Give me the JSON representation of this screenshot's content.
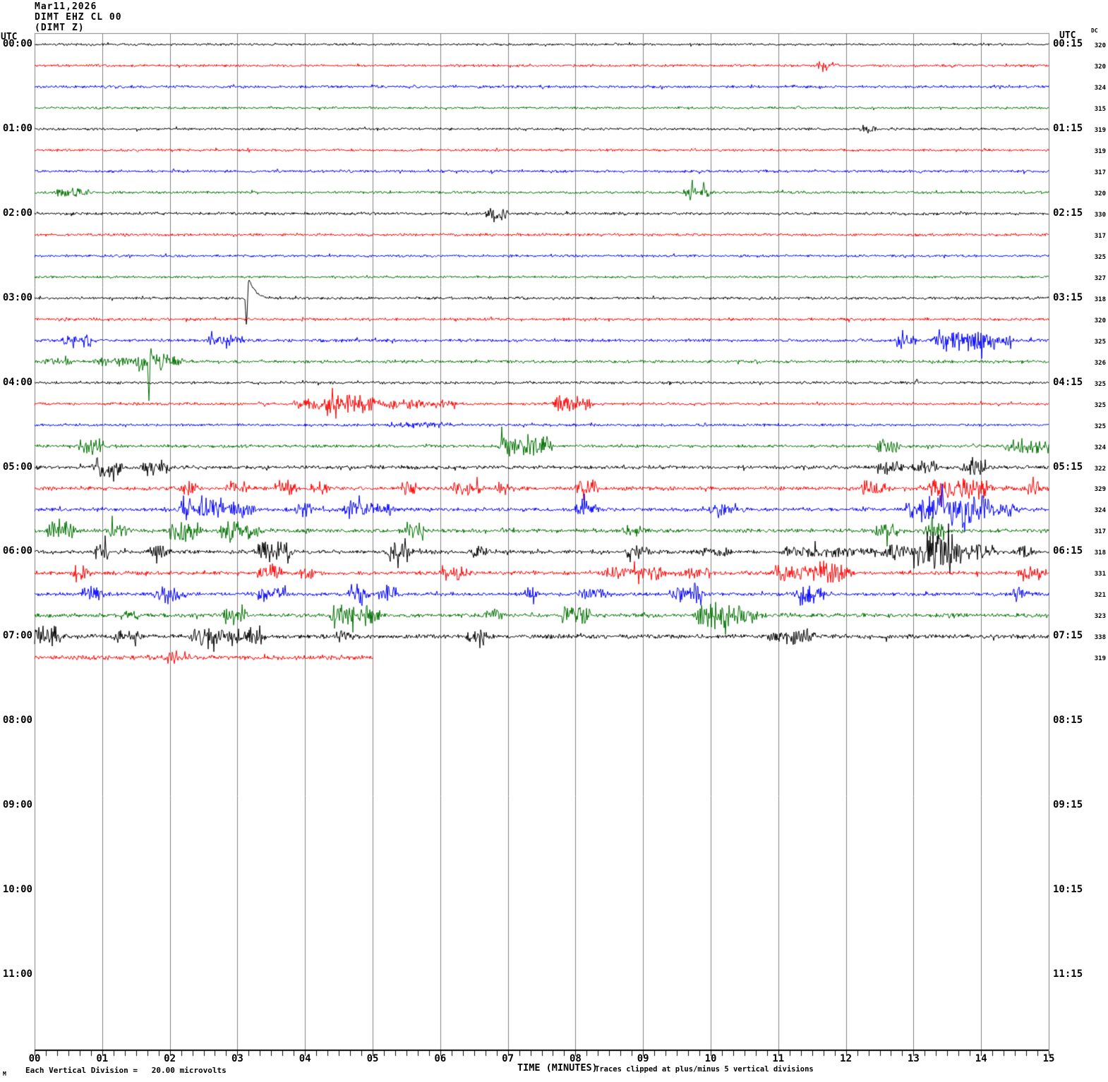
{
  "title": {
    "date": "Mar11,2026",
    "station": "DIMT EHZ CL 00",
    "component": "(DIMT Z)"
  },
  "header": {
    "utc_left": "UTC",
    "utc_right": "UTC",
    "dc_label": "DC"
  },
  "footer": {
    "scale_note": "Each Vertical Division =   20.00 microvolts",
    "xlabel": "TIME (MINUTES)",
    "clip_note": "Traces clipped at plus/minus 5 vertical divisions",
    "watermark": "M"
  },
  "chart_data": {
    "type": "line",
    "kind": "helicorder-seismogram",
    "x_range_minutes": [
      0,
      15
    ],
    "x_tick_labels": [
      "00",
      "01",
      "02",
      "03",
      "04",
      "05",
      "06",
      "07",
      "08",
      "09",
      "10",
      "11",
      "12",
      "13",
      "14",
      "15"
    ],
    "minor_ticks_per_minute": 6,
    "grid": true,
    "trace_colors": [
      "#000000",
      "#ff0000",
      "#0000ff",
      "#007000"
    ],
    "grid_color": "#808080",
    "axis_color": "#000000",
    "hour_labels": [
      {
        "left": "00:00",
        "right": "00:15"
      },
      {
        "left": "01:00",
        "right": "01:15"
      },
      {
        "left": "02:00",
        "right": "02:15"
      },
      {
        "left": "03:00",
        "right": "03:15"
      },
      {
        "left": "04:00",
        "right": "04:15"
      },
      {
        "left": "05:00",
        "right": "05:15"
      },
      {
        "left": "06:00",
        "right": "06:15"
      },
      {
        "left": "07:00",
        "right": "07:15"
      },
      {
        "left": "08:00",
        "right": "08:15"
      },
      {
        "left": "09:00",
        "right": "09:15"
      },
      {
        "left": "10:00",
        "right": "10:15"
      },
      {
        "left": "11:00",
        "right": "11:15"
      }
    ],
    "rows": [
      {
        "c": 0,
        "dc": "320",
        "base": 1.2,
        "bursts": [],
        "spikes": []
      },
      {
        "c": 1,
        "dc": "320",
        "base": 1.3,
        "bursts": [
          [
            11.6,
            11.85,
            3
          ]
        ],
        "spikes": [
          [
            11.72,
            0.01,
            -4
          ]
        ]
      },
      {
        "c": 2,
        "dc": "324",
        "base": 1.4,
        "bursts": [],
        "spikes": []
      },
      {
        "c": 3,
        "dc": "315",
        "base": 1.2,
        "bursts": [],
        "spikes": [
          [
            11.3,
            0.012,
            4
          ]
        ]
      },
      {
        "c": 0,
        "dc": "319",
        "base": 1.3,
        "bursts": [
          [
            12.25,
            12.4,
            3
          ]
        ],
        "spikes": []
      },
      {
        "c": 1,
        "dc": "319",
        "base": 1.3,
        "bursts": [],
        "spikes": [
          [
            3.16,
            0.01,
            5
          ],
          [
            3.17,
            0.008,
            -4
          ]
        ]
      },
      {
        "c": 2,
        "dc": "317",
        "base": 1.4,
        "bursts": [],
        "spikes": []
      },
      {
        "c": 3,
        "dc": "320",
        "base": 1.3,
        "bursts": [
          [
            0.35,
            0.55,
            3
          ],
          [
            0.62,
            0.8,
            3
          ],
          [
            9.65,
            10.0,
            4
          ]
        ],
        "spikes": [
          [
            9.7,
            0.013,
            -15
          ],
          [
            9.72,
            0.009,
            10
          ],
          [
            9.9,
            0.014,
            9
          ]
        ]
      },
      {
        "c": 0,
        "dc": "330",
        "base": 1.4,
        "bursts": [
          [
            6.72,
            6.95,
            6
          ]
        ],
        "spikes": [
          [
            6.8,
            0.01,
            -7
          ],
          [
            13.7,
            0.008,
            5
          ]
        ]
      },
      {
        "c": 1,
        "dc": "317",
        "base": 1.4,
        "bursts": [],
        "spikes": []
      },
      {
        "c": 2,
        "dc": "325",
        "base": 1.3,
        "bursts": [],
        "spikes": []
      },
      {
        "c": 3,
        "dc": "327",
        "base": 1.2,
        "bursts": [],
        "spikes": []
      },
      {
        "c": 0,
        "dc": "318",
        "base": 1.4,
        "bursts": [],
        "spikes": [],
        "pulse": [
          3.11,
          -42,
          30
        ]
      },
      {
        "c": 1,
        "dc": "320",
        "base": 1.4,
        "bursts": [],
        "spikes": []
      },
      {
        "c": 2,
        "dc": "325",
        "base": 1.6,
        "bursts": [
          [
            0.45,
            0.85,
            5
          ],
          [
            2.6,
            3.05,
            5
          ],
          [
            12.75,
            13.0,
            5
          ],
          [
            13.35,
            14.15,
            9
          ],
          [
            14.15,
            14.45,
            4
          ]
        ],
        "spikes": []
      },
      {
        "c": 3,
        "dc": "326",
        "base": 1.5,
        "bursts": [
          [
            0.2,
            0.5,
            3
          ],
          [
            0.95,
            1.55,
            4
          ],
          [
            1.55,
            1.9,
            7
          ],
          [
            1.9,
            2.15,
            5
          ]
        ],
        "spikes": [
          [
            1.69,
            0.012,
            -50
          ],
          [
            1.73,
            0.018,
            18
          ]
        ]
      },
      {
        "c": 0,
        "dc": "325",
        "base": 1.4,
        "bursts": [],
        "spikes": [
          [
            13.05,
            0.01,
            5
          ]
        ]
      },
      {
        "c": 1,
        "dc": "325",
        "base": 1.4,
        "bursts": [
          [
            3.85,
            6.2,
            3.5
          ],
          [
            4.25,
            4.95,
            4.5
          ],
          [
            7.72,
            8.2,
            7
          ]
        ],
        "spikes": [
          [
            7.8,
            0.012,
            -11
          ]
        ]
      },
      {
        "c": 2,
        "dc": "325",
        "base": 1.4,
        "bursts": [
          [
            5.3,
            6.1,
            2
          ]
        ],
        "spikes": []
      },
      {
        "c": 3,
        "dc": "324",
        "base": 1.6,
        "bursts": [
          [
            0.69,
            0.98,
            7
          ],
          [
            6.9,
            7.6,
            9
          ],
          [
            12.5,
            12.75,
            6
          ],
          [
            14.4,
            15.0,
            6
          ]
        ],
        "spikes": []
      },
      {
        "c": 0,
        "dc": "322",
        "base": 1.9,
        "bursts": [
          [
            0.91,
            1.28,
            8
          ],
          [
            1.63,
            1.95,
            6
          ],
          [
            12.48,
            12.8,
            5
          ],
          [
            13.05,
            13.3,
            6
          ],
          [
            13.75,
            14.05,
            5
          ]
        ],
        "spikes": []
      },
      {
        "c": 1,
        "dc": "329",
        "base": 2.0,
        "bursts": [
          [
            2.17,
            2.36,
            5
          ],
          [
            2.9,
            3.15,
            5
          ],
          [
            3.6,
            3.85,
            6
          ],
          [
            4.16,
            4.3,
            5
          ],
          [
            5.45,
            5.6,
            6
          ],
          [
            6.2,
            6.6,
            5
          ],
          [
            6.85,
            7.0,
            5
          ],
          [
            8.05,
            8.3,
            8
          ],
          [
            12.28,
            12.6,
            6
          ],
          [
            13.27,
            13.62,
            7
          ],
          [
            13.7,
            14.1,
            10
          ],
          [
            14.65,
            14.85,
            6
          ]
        ],
        "spikes": [
          [
            13.82,
            0.013,
            -12
          ]
        ]
      },
      {
        "c": 2,
        "dc": "324",
        "base": 1.9,
        "bursts": [
          [
            2.17,
            2.76,
            9
          ],
          [
            2.9,
            3.2,
            7
          ],
          [
            3.92,
            4.1,
            6
          ],
          [
            4.63,
            4.95,
            7
          ],
          [
            5.02,
            5.25,
            6
          ],
          [
            8.05,
            8.3,
            7
          ],
          [
            10.0,
            10.45,
            4
          ],
          [
            12.95,
            13.25,
            10
          ],
          [
            13.3,
            14.05,
            14
          ],
          [
            14.15,
            14.5,
            6
          ]
        ],
        "spikes": [
          [
            4.8,
            0.012,
            12
          ],
          [
            8.1,
            0.012,
            10
          ],
          [
            13.75,
            0.02,
            -22
          ]
        ]
      },
      {
        "c": 3,
        "dc": "317",
        "base": 2.0,
        "bursts": [
          [
            0.25,
            0.55,
            9
          ],
          [
            1.13,
            1.35,
            7
          ],
          [
            2.02,
            2.42,
            10
          ],
          [
            2.78,
            3.05,
            8
          ],
          [
            3.15,
            3.3,
            6
          ],
          [
            5.5,
            5.75,
            6
          ],
          [
            8.74,
            8.95,
            4
          ],
          [
            12.45,
            12.75,
            6
          ],
          [
            13.2,
            13.45,
            7
          ]
        ],
        "spikes": [
          [
            2.9,
            0.012,
            -11
          ]
        ]
      },
      {
        "c": 0,
        "dc": "318",
        "base": 2.0,
        "bursts": [
          [
            0.91,
            1.06,
            7
          ],
          [
            1.75,
            1.95,
            5
          ],
          [
            3.3,
            3.75,
            10
          ],
          [
            5.27,
            5.5,
            11
          ],
          [
            6.5,
            6.7,
            5
          ],
          [
            8.8,
            9.05,
            6
          ],
          [
            9.9,
            10.25,
            4
          ],
          [
            11.1,
            12.5,
            3.5
          ],
          [
            12.65,
            14.15,
            8
          ],
          [
            13.15,
            13.55,
            12
          ],
          [
            14.55,
            14.75,
            5
          ]
        ],
        "spikes": [
          [
            5.38,
            0.012,
            -14
          ],
          [
            8.9,
            0.01,
            8
          ]
        ]
      },
      {
        "c": 1,
        "dc": "331",
        "base": 2.0,
        "bursts": [
          [
            0.59,
            0.81,
            7
          ],
          [
            3.35,
            3.6,
            9
          ],
          [
            3.94,
            4.1,
            5
          ],
          [
            6.06,
            6.4,
            8
          ],
          [
            8.45,
            9.3,
            5
          ],
          [
            9.6,
            10.0,
            4
          ],
          [
            10.95,
            11.55,
            7
          ],
          [
            11.6,
            12.05,
            10
          ],
          [
            14.6,
            14.9,
            7
          ]
        ],
        "spikes": []
      },
      {
        "c": 2,
        "dc": "321",
        "base": 1.8,
        "bursts": [
          [
            0.74,
            0.96,
            8
          ],
          [
            1.8,
            1.98,
            7
          ],
          [
            2.07,
            2.2,
            5
          ],
          [
            3.35,
            3.67,
            7
          ],
          [
            4.68,
            4.87,
            9
          ],
          [
            5.12,
            5.32,
            8
          ],
          [
            7.28,
            7.4,
            5
          ],
          [
            8.1,
            8.45,
            4
          ],
          [
            9.45,
            9.85,
            9
          ],
          [
            11.3,
            11.65,
            9
          ],
          [
            14.5,
            14.68,
            5
          ]
        ],
        "spikes": [
          [
            4.77,
            0.01,
            10
          ]
        ]
      },
      {
        "c": 3,
        "dc": "323",
        "base": 2.1,
        "bursts": [
          [
            1.33,
            1.5,
            5
          ],
          [
            2.83,
            3.08,
            8
          ],
          [
            4.43,
            5.07,
            10
          ],
          [
            6.7,
            6.87,
            6
          ],
          [
            7.83,
            8.17,
            8
          ],
          [
            9.8,
            10.4,
            11
          ],
          [
            10.45,
            10.7,
            6
          ]
        ],
        "spikes": [
          [
            4.62,
            0.01,
            12
          ],
          [
            3.0,
            0.01,
            -9
          ],
          [
            9.95,
            0.012,
            -12
          ]
        ]
      },
      {
        "c": 0,
        "dc": "338",
        "base": 2.2,
        "bursts": [
          [
            0.0,
            0.35,
            10
          ],
          [
            1.18,
            1.5,
            5
          ],
          [
            2.36,
            3.0,
            7
          ],
          [
            3.05,
            3.35,
            9
          ],
          [
            4.5,
            4.7,
            4
          ],
          [
            6.45,
            6.65,
            7
          ],
          [
            10.85,
            11.1,
            4
          ],
          [
            11.25,
            11.5,
            6
          ]
        ],
        "spikes": [
          [
            12.6,
            0.008,
            -6
          ]
        ]
      },
      {
        "c": 1,
        "dc": "319",
        "base": 2.3,
        "bursts": [
          [
            1.95,
            2.25,
            4
          ]
        ],
        "spikes": [],
        "end": 5.02
      }
    ]
  }
}
